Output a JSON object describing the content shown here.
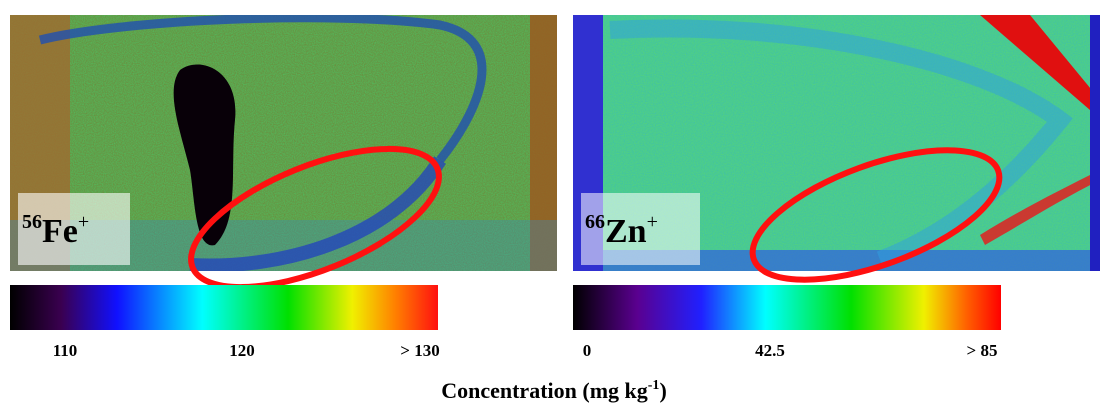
{
  "panels": [
    {
      "label": {
        "mass": "56",
        "symbol": "Fe",
        "charge": "+"
      },
      "colorbar": {
        "ticks": [
          "110",
          "120",
          "> 130"
        ]
      }
    },
    {
      "label": {
        "mass": "66",
        "symbol": "Zn",
        "charge": "+"
      },
      "colorbar": {
        "ticks": [
          "0",
          "42.5",
          "> 85"
        ]
      }
    }
  ],
  "caption": {
    "text": "Concentration (mg kg",
    "exponent": "-1",
    "close": ")"
  }
}
